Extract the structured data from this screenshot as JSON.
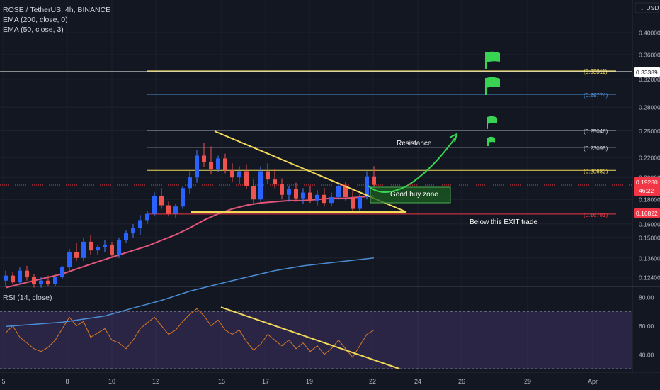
{
  "legend": {
    "symbol": "ROSE / TetherUS, 4h, BINANCE",
    "ema200": "EMA (200, close, 0)",
    "ema50": "EMA (50, close, 3)",
    "rsi": "RSI (14, close)"
  },
  "currency": "USDT",
  "annotations": {
    "resistance": "Resistance",
    "buy_zone": "Good buy zone",
    "exit": "Below this EXIT trade"
  },
  "chart_data": [
    {
      "type": "candlestick",
      "title": "ROSE / TetherUS, 4h, BINANCE",
      "x_ticks": [
        "5",
        "8",
        "10",
        "12",
        "15",
        "17",
        "19",
        "22",
        "24",
        "26",
        "29",
        "Apr"
      ],
      "y_ticks": [
        "0.40000",
        "0.36000",
        "0.32000",
        "0.28000",
        "0.25000",
        "0.22000",
        "0.20000",
        "0.18000",
        "0.16000",
        "0.15000",
        "0.13600",
        "0.12400"
      ],
      "y_scale": "log",
      "price_levels": [
        {
          "value": 0.33311,
          "label": "(0.33311)",
          "color": "#f0d85a"
        },
        {
          "value": 0.29774,
          "label": "(0.29774)",
          "color": "#4a90d9"
        },
        {
          "value": 0.25046,
          "label": "(0.25046)",
          "color": "#d1d4dc"
        },
        {
          "value": 0.23095,
          "label": "(0.23095)",
          "color": "#d1d4dc"
        },
        {
          "value": 0.20682,
          "label": "(0.20682)",
          "color": "#f0d85a"
        },
        {
          "value": 0.16781,
          "label": "(0.16781)",
          "color": "#f23645"
        }
      ],
      "price_tags": [
        {
          "value": "0.33389",
          "color": "#ffffff",
          "text_color": "#131722"
        },
        {
          "value": "0.19280",
          "value2": "46:22",
          "color": "#f23645",
          "text_color": "#ffffff"
        },
        {
          "value": "0.16822",
          "color": "#f23645",
          "text_color": "#ffffff"
        }
      ],
      "candles": [
        [
          0.122,
          0.128,
          0.119,
          0.125
        ],
        [
          0.125,
          0.127,
          0.12,
          0.121
        ],
        [
          0.121,
          0.13,
          0.12,
          0.128
        ],
        [
          0.128,
          0.131,
          0.122,
          0.124
        ],
        [
          0.124,
          0.126,
          0.118,
          0.12
        ],
        [
          0.12,
          0.124,
          0.118,
          0.122
        ],
        [
          0.122,
          0.125,
          0.119,
          0.12
        ],
        [
          0.12,
          0.126,
          0.119,
          0.124
        ],
        [
          0.124,
          0.131,
          0.123,
          0.13
        ],
        [
          0.13,
          0.142,
          0.128,
          0.14
        ],
        [
          0.14,
          0.146,
          0.134,
          0.136
        ],
        [
          0.136,
          0.15,
          0.134,
          0.147
        ],
        [
          0.147,
          0.152,
          0.138,
          0.141
        ],
        [
          0.141,
          0.145,
          0.138,
          0.143
        ],
        [
          0.143,
          0.148,
          0.14,
          0.145
        ],
        [
          0.145,
          0.147,
          0.136,
          0.138
        ],
        [
          0.138,
          0.15,
          0.136,
          0.148
        ],
        [
          0.148,
          0.155,
          0.146,
          0.153
        ],
        [
          0.153,
          0.16,
          0.15,
          0.157
        ],
        [
          0.157,
          0.167,
          0.152,
          0.163
        ],
        [
          0.163,
          0.17,
          0.16,
          0.168
        ],
        [
          0.168,
          0.186,
          0.166,
          0.183
        ],
        [
          0.183,
          0.19,
          0.172,
          0.175
        ],
        [
          0.175,
          0.178,
          0.166,
          0.168
        ],
        [
          0.168,
          0.176,
          0.165,
          0.174
        ],
        [
          0.174,
          0.192,
          0.172,
          0.19
        ],
        [
          0.19,
          0.206,
          0.185,
          0.2
        ],
        [
          0.2,
          0.228,
          0.195,
          0.222
        ],
        [
          0.222,
          0.236,
          0.21,
          0.215
        ],
        [
          0.215,
          0.232,
          0.203,
          0.208
        ],
        [
          0.208,
          0.222,
          0.205,
          0.219
        ],
        [
          0.219,
          0.224,
          0.204,
          0.207
        ],
        [
          0.207,
          0.214,
          0.196,
          0.2
        ],
        [
          0.2,
          0.211,
          0.194,
          0.206
        ],
        [
          0.206,
          0.213,
          0.189,
          0.192
        ],
        [
          0.192,
          0.198,
          0.176,
          0.18
        ],
        [
          0.18,
          0.211,
          0.178,
          0.206
        ],
        [
          0.206,
          0.214,
          0.194,
          0.198
        ],
        [
          0.198,
          0.208,
          0.19,
          0.194
        ],
        [
          0.194,
          0.199,
          0.18,
          0.184
        ],
        [
          0.184,
          0.192,
          0.178,
          0.189
        ],
        [
          0.189,
          0.195,
          0.178,
          0.181
        ],
        [
          0.181,
          0.19,
          0.176,
          0.186
        ],
        [
          0.186,
          0.192,
          0.177,
          0.179
        ],
        [
          0.179,
          0.188,
          0.175,
          0.184
        ],
        [
          0.184,
          0.19,
          0.174,
          0.177
        ],
        [
          0.177,
          0.186,
          0.174,
          0.182
        ],
        [
          0.182,
          0.196,
          0.18,
          0.192
        ],
        [
          0.192,
          0.196,
          0.179,
          0.182
        ],
        [
          0.182,
          0.188,
          0.17,
          0.172
        ],
        [
          0.172,
          0.185,
          0.17,
          0.182
        ],
        [
          0.182,
          0.206,
          0.18,
          0.201
        ],
        [
          0.201,
          0.211,
          0.189,
          0.193
        ]
      ],
      "ema50": [
        [
          0,
          0.118
        ],
        [
          2,
          0.12
        ],
        [
          4,
          0.122
        ],
        [
          6,
          0.124
        ],
        [
          8,
          0.126
        ],
        [
          10,
          0.129
        ],
        [
          12,
          0.132
        ],
        [
          14,
          0.135
        ],
        [
          16,
          0.138
        ],
        [
          18,
          0.141
        ],
        [
          20,
          0.144
        ],
        [
          22,
          0.148
        ],
        [
          24,
          0.152
        ],
        [
          26,
          0.157
        ],
        [
          28,
          0.163
        ],
        [
          30,
          0.168
        ],
        [
          32,
          0.172
        ],
        [
          34,
          0.175
        ],
        [
          36,
          0.177
        ],
        [
          38,
          0.178
        ],
        [
          40,
          0.179
        ],
        [
          42,
          0.179
        ],
        [
          44,
          0.18
        ],
        [
          46,
          0.181
        ],
        [
          48,
          0.181
        ],
        [
          50,
          0.182
        ],
        [
          52,
          0.183
        ]
      ],
      "ema200": [
        [
          0,
          0.098
        ],
        [
          8,
          0.1
        ],
        [
          14,
          0.103
        ],
        [
          18,
          0.107
        ],
        [
          22,
          0.111
        ],
        [
          26,
          0.116
        ],
        [
          30,
          0.12
        ],
        [
          34,
          0.124
        ],
        [
          38,
          0.128
        ],
        [
          42,
          0.131
        ],
        [
          46,
          0.133
        ],
        [
          50,
          0.135
        ],
        [
          52,
          0.136
        ]
      ]
    },
    {
      "type": "line",
      "title": "RSI (14, close)",
      "y_ticks": [
        "80.00",
        "60.00",
        "40.00"
      ],
      "ylim": [
        30,
        85
      ],
      "bands": [
        70,
        30
      ],
      "values": [
        55,
        60,
        52,
        48,
        44,
        42,
        45,
        50,
        58,
        66,
        60,
        63,
        52,
        55,
        58,
        50,
        48,
        44,
        50,
        58,
        62,
        66,
        60,
        54,
        57,
        63,
        68,
        72,
        67,
        60,
        64,
        57,
        54,
        57,
        49,
        43,
        47,
        54,
        50,
        46,
        50,
        44,
        48,
        42,
        46,
        40,
        44,
        50,
        44,
        38,
        46,
        54,
        57
      ]
    }
  ]
}
